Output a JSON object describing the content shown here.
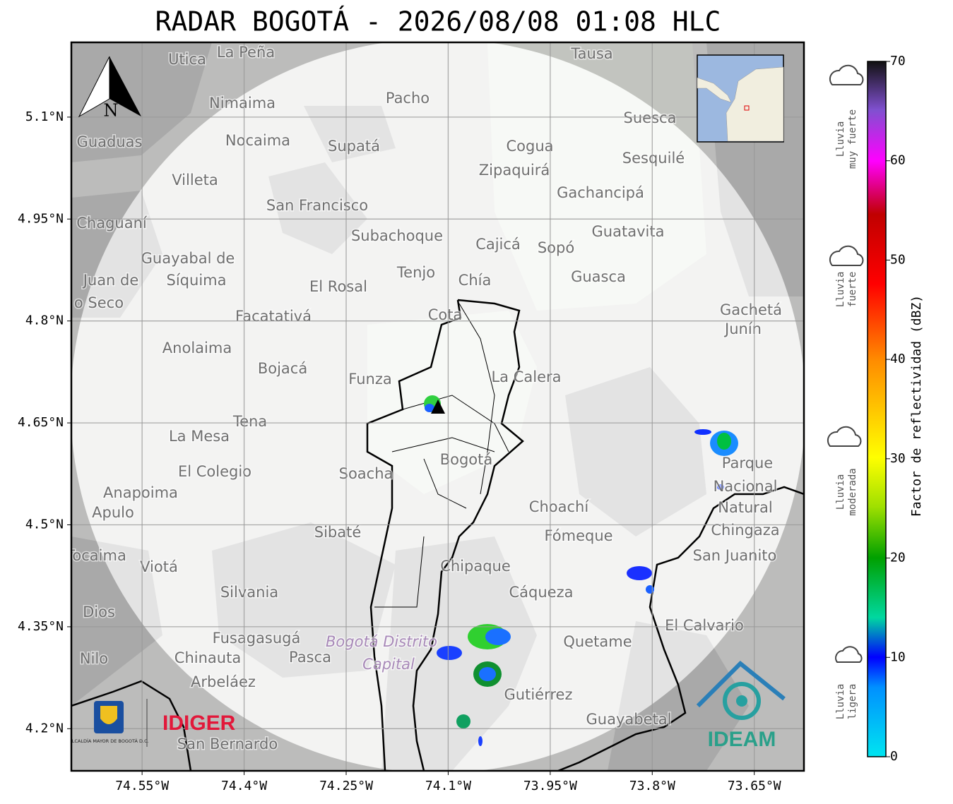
{
  "title": "RADAR BOGOTÁ - 2026/08/08 01:08 HLC",
  "map": {
    "xlim": [
      -74.654,
      -73.577
    ],
    "ylim": [
      4.138,
      5.21
    ],
    "xticks": [
      {
        "value": -74.55,
        "label": "74.55°W"
      },
      {
        "value": -74.4,
        "label": "74.4°W"
      },
      {
        "value": -74.25,
        "label": "74.25°W"
      },
      {
        "value": -74.1,
        "label": "74.1°W"
      },
      {
        "value": -73.95,
        "label": "73.95°W"
      },
      {
        "value": -73.8,
        "label": "73.8°W"
      },
      {
        "value": -73.65,
        "label": "73.65°W"
      }
    ],
    "yticks": [
      {
        "value": 5.1,
        "label": "5.1°N"
      },
      {
        "value": 4.95,
        "label": "4.95°N"
      },
      {
        "value": 4.8,
        "label": "4.8°N"
      },
      {
        "value": 4.65,
        "label": "4.65°N"
      },
      {
        "value": 4.5,
        "label": "4.5°N"
      },
      {
        "value": 4.35,
        "label": "4.35°N"
      },
      {
        "value": 4.2,
        "label": "4.2°N"
      }
    ],
    "north_label": "N",
    "place_labels": [
      "La Peña",
      "Utica",
      "Tausa",
      "Pacho",
      "Nimaima",
      "Suesca",
      "Guaduas",
      "Nocaima",
      "Supatá",
      "Cogua",
      "Sesquilé",
      "Zipaquirá",
      "Villeta",
      "Gachancipá",
      "San Francisco",
      "Chaguaní",
      "Guatavita",
      "Subachoque",
      "Cajicá",
      "Sopó",
      "Guayabal de",
      "Síquima",
      "Tenjo",
      "Chía",
      "Guasca",
      "Juan de",
      "El Rosal",
      "o Seco",
      "Gachetá",
      "Facatativá",
      "Cota",
      "Junín",
      "Anolaima",
      "Bojacá",
      "Funza",
      "La Calera",
      "Tena",
      "La Mesa",
      "Bogotá",
      "Parque",
      "Soacha",
      "El Colegio",
      "Nacional",
      "Anapoima",
      "Apulo",
      "Natural",
      "Choachí",
      "Chingaza",
      "Sibaté",
      "Fómeque",
      "San Juanito",
      "Viotá",
      "Tocaima",
      "Chipaque",
      "Cáqueza",
      "Silvania",
      "Dios",
      "El Calvario",
      "Fusagasugá",
      "Quetame",
      "Bogotá Distrito",
      "Capital",
      "Nilo",
      "Chinauta",
      "Pasca",
      "Arbeláez",
      "Gutiérrez",
      "Guayabetal",
      "San Bernardo"
    ],
    "logos": {
      "alcaldia": "ALCALDÍA MAYOR DE BOGOTÁ D.C.",
      "idiger": "IDIGER",
      "ideam": "IDEAM"
    }
  },
  "colorbar": {
    "label": "Factor de reflectividad (dBZ)",
    "lim": [
      0,
      70
    ],
    "ticks": [
      0,
      10,
      20,
      30,
      40,
      50,
      60,
      70
    ]
  },
  "rain_classes": [
    [
      "Lluvia",
      "muy fuerte"
    ],
    [
      "Lluvia",
      "fuerte"
    ],
    [
      "Lluvia",
      "moderada"
    ],
    [
      "Lluvia",
      "ligera"
    ]
  ]
}
